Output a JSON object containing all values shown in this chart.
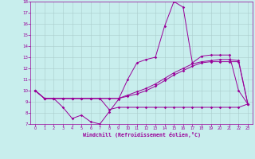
{
  "title": "",
  "xlabel": "Windchill (Refroidissement éolien,°C)",
  "background_color": "#c8eeed",
  "grid_color": "#b8d8d8",
  "line_color": "#990099",
  "x": [
    0,
    1,
    2,
    3,
    4,
    5,
    6,
    7,
    8,
    9,
    10,
    11,
    12,
    13,
    14,
    15,
    16,
    17,
    18,
    19,
    20,
    21,
    22,
    23
  ],
  "series1": [
    10.0,
    9.3,
    9.3,
    8.5,
    7.5,
    7.8,
    7.2,
    7.0,
    8.1,
    9.2,
    11.0,
    12.5,
    12.8,
    13.0,
    15.8,
    18.0,
    17.5,
    12.5,
    13.1,
    13.2,
    13.2,
    13.2,
    10.0,
    8.8
  ],
  "series2": [
    10.0,
    9.3,
    9.3,
    9.3,
    9.3,
    9.3,
    9.3,
    9.3,
    9.3,
    9.3,
    9.6,
    9.9,
    10.2,
    10.6,
    11.1,
    11.6,
    12.0,
    12.4,
    12.6,
    12.7,
    12.8,
    12.8,
    12.7,
    8.8
  ],
  "series3": [
    10.0,
    9.3,
    9.3,
    9.3,
    9.3,
    9.3,
    9.3,
    9.3,
    9.3,
    9.3,
    9.5,
    9.7,
    10.0,
    10.4,
    10.9,
    11.4,
    11.8,
    12.2,
    12.5,
    12.6,
    12.6,
    12.6,
    12.6,
    8.8
  ],
  "series4": [
    10.0,
    9.3,
    9.3,
    9.3,
    9.3,
    9.3,
    9.3,
    9.3,
    8.3,
    8.5,
    8.5,
    8.5,
    8.5,
    8.5,
    8.5,
    8.5,
    8.5,
    8.5,
    8.5,
    8.5,
    8.5,
    8.5,
    8.5,
    8.8
  ],
  "ylim": [
    7,
    18
  ],
  "yticks": [
    7,
    8,
    9,
    10,
    11,
    12,
    13,
    14,
    15,
    16,
    17,
    18
  ],
  "xlim": [
    -0.5,
    23.5
  ],
  "xticks": [
    0,
    1,
    2,
    3,
    4,
    5,
    6,
    7,
    8,
    9,
    10,
    11,
    12,
    13,
    14,
    15,
    16,
    17,
    18,
    19,
    20,
    21,
    22,
    23
  ]
}
